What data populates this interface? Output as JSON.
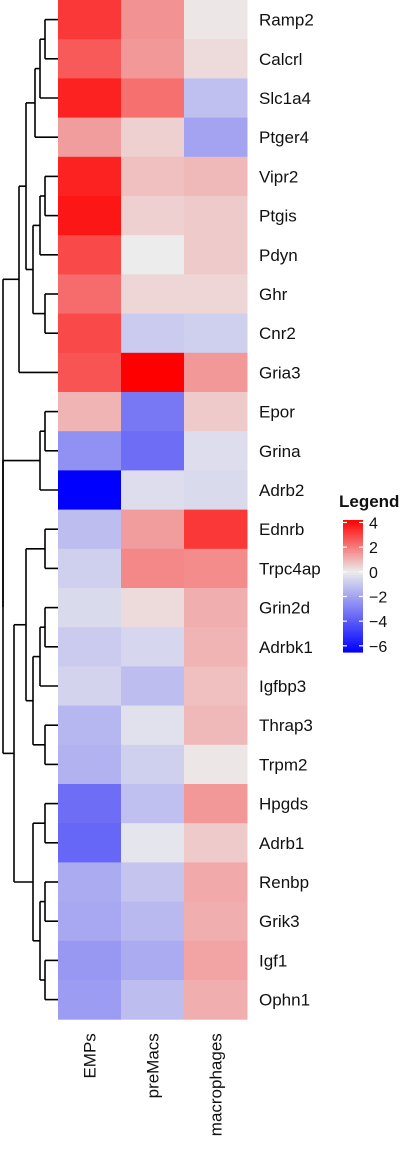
{
  "chart_data": {
    "type": "heatmap",
    "columns": [
      "EMPs",
      "preMacs",
      "macrophages"
    ],
    "rows": [
      "Ramp2",
      "Calcrl",
      "Slc1a4",
      "Ptger4",
      "Vipr2",
      "Ptgis",
      "Pdyn",
      "Ghr",
      "Cnr2",
      "Gria3",
      "Epor",
      "Grina",
      "Adrb2",
      "Ednrb",
      "Trpc4ap",
      "Grin2d",
      "Adrbk1",
      "Igfbp3",
      "Thrap3",
      "Trpm2",
      "Hpgds",
      "Adrb1",
      "Renbp",
      "Grik3",
      "Igf1",
      "Ophn1"
    ],
    "values": [
      [
        3.2,
        1.6,
        0.1
      ],
      [
        2.6,
        1.5,
        0.3
      ],
      [
        3.6,
        2.2,
        -1.2
      ],
      [
        1.4,
        0.5,
        -2.0
      ],
      [
        3.6,
        0.8,
        0.9
      ],
      [
        3.8,
        0.5,
        0.6
      ],
      [
        2.9,
        0.0,
        0.6
      ],
      [
        2.3,
        0.4,
        0.4
      ],
      [
        2.9,
        -0.9,
        -0.8
      ],
      [
        2.7,
        4.2,
        1.5
      ],
      [
        1.0,
        -3.2,
        0.6
      ],
      [
        -2.5,
        -3.5,
        -0.4
      ],
      [
        -6.5,
        -0.4,
        -0.5
      ],
      [
        -1.3,
        1.4,
        3.2
      ],
      [
        -0.8,
        1.8,
        1.7
      ],
      [
        -0.5,
        0.3,
        1.1
      ],
      [
        -0.9,
        -0.6,
        1.0
      ],
      [
        -0.7,
        -1.3,
        0.8
      ],
      [
        -1.5,
        -0.3,
        0.9
      ],
      [
        -1.6,
        -0.8,
        0.1
      ],
      [
        -3.5,
        -1.2,
        1.5
      ],
      [
        -3.7,
        -0.2,
        0.6
      ],
      [
        -1.8,
        -1.1,
        1.2
      ],
      [
        -1.9,
        -1.4,
        1.1
      ],
      [
        -2.3,
        -1.8,
        1.3
      ],
      [
        -2.2,
        -1.3,
        1.1
      ]
    ],
    "legend": {
      "title": "Legend",
      "ticks": [
        4,
        2,
        0,
        -2,
        -4,
        -6
      ],
      "tick_labels": [
        "4",
        "2",
        "0",
        "−2",
        "−4",
        "−6"
      ],
      "range": [
        -6.5,
        4.2
      ],
      "placement": "right"
    },
    "colors": {
      "low": "#0000ff",
      "mid": "#ececec",
      "high": "#ff0000"
    },
    "dendrogram": "left (rows)",
    "grid": false
  }
}
